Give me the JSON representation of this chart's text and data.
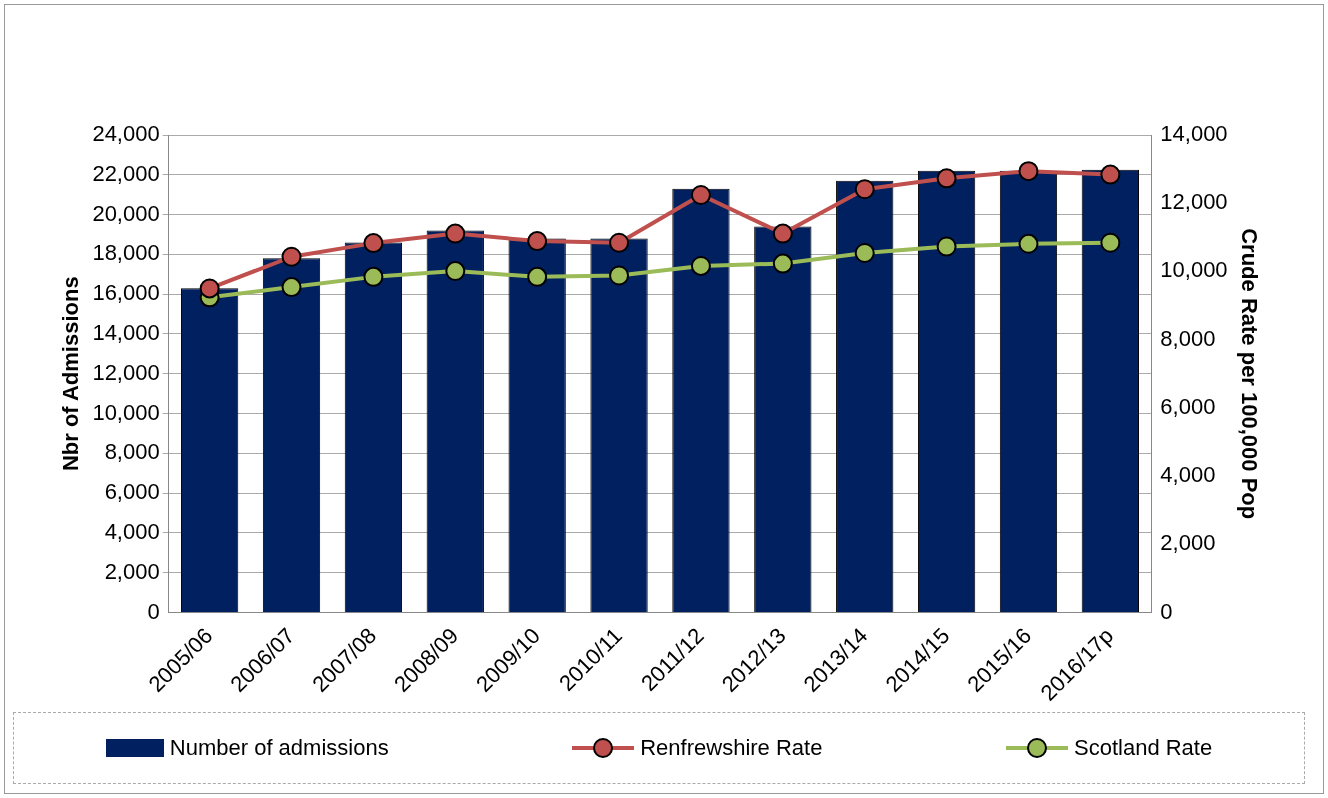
{
  "chart_data": {
    "type": "bar",
    "ylabel": "Nbr of Admissions",
    "y2label": "Crude Rate per 100,000 Pop",
    "categories": [
      "2005/06",
      "2006/07",
      "2007/08",
      "2008/09",
      "2009/10",
      "2010/11",
      "2011/12",
      "2012/13",
      "2013/14",
      "2014/15",
      "2015/16",
      "2016/17p"
    ],
    "series": [
      {
        "name": "Number of admissions",
        "color": "#002060",
        "values": [
          16300,
          17800,
          18600,
          19200,
          18800,
          18800,
          21300,
          19400,
          21700,
          22200,
          22200,
          22250
        ]
      },
      {
        "name": "Renfrewshire Rate",
        "type": "line",
        "axis": "y2",
        "color": "#c0504d",
        "values": [
          9500,
          10430,
          10830,
          11110,
          10890,
          10840,
          12240,
          11110,
          12410,
          12730,
          12940,
          12840
        ]
      },
      {
        "name": "Scotland Rate",
        "type": "line",
        "axis": "y2",
        "color": "#9bbb59",
        "values": [
          9240,
          9540,
          9840,
          10010,
          9840,
          9880,
          10160,
          10230,
          10540,
          10730,
          10810,
          10840
        ]
      }
    ],
    "ylim": [
      0,
      24000
    ],
    "yticks": [
      0,
      {
        "value": 2000,
        "label": "2,000"
      },
      {
        "value": 4000,
        "label": "4,000"
      },
      {
        "value": 6000,
        "label": "6,000"
      },
      {
        "value": 8000,
        "label": "8,000"
      },
      {
        "value": 10000,
        "label": "10,000"
      },
      {
        "value": 12000,
        "label": "12,000"
      },
      {
        "value": 14000,
        "label": "14,000"
      },
      {
        "value": 16000,
        "label": "16,000"
      },
      {
        "value": 18000,
        "label": "18,000"
      },
      {
        "value": 20000,
        "label": "20,000"
      },
      {
        "value": 22000,
        "label": "22,000"
      },
      {
        "value": 24000,
        "label": "24,000"
      }
    ],
    "y2lim": [
      0,
      14000
    ],
    "y2ticks": [
      0,
      {
        "value": 2000,
        "label": "2,000"
      },
      {
        "value": 4000,
        "label": "4,000"
      },
      {
        "value": 6000,
        "label": "6,000"
      },
      {
        "value": 8000,
        "label": "8,000"
      },
      {
        "value": 10000,
        "label": "10,000"
      },
      {
        "value": 12000,
        "label": "12,000"
      },
      {
        "value": 14000,
        "label": "14,000"
      }
    ],
    "grid": "y",
    "legend": "bottom",
    "marker": "circle",
    "line_style": "solid"
  }
}
